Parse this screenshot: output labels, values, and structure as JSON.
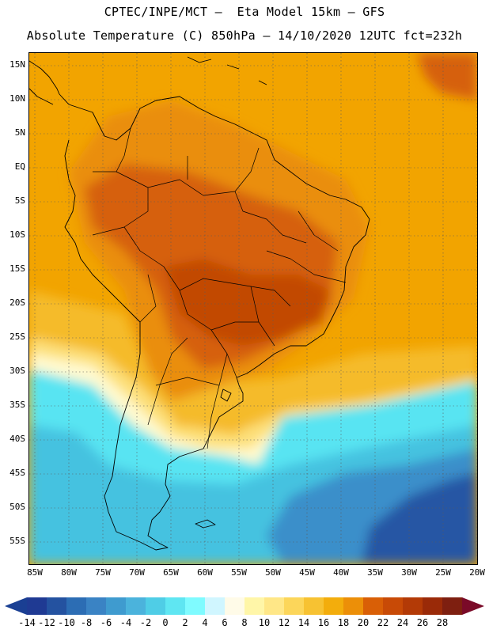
{
  "title_line1": "CPTEC/INPE/MCT –  Eta Model 15km – GFS",
  "title_line2": "Absolute Temperature (C) 850hPa – 14/10/2020 12UTC fct=232h",
  "lat_labels": [
    "15N",
    "10N",
    "5N",
    "EQ",
    "5S",
    "10S",
    "15S",
    "20S",
    "25S",
    "30S",
    "35S",
    "40S",
    "45S",
    "50S",
    "55S"
  ],
  "lon_labels": [
    "85W",
    "80W",
    "75W",
    "70W",
    "65W",
    "60W",
    "55W",
    "50W",
    "45W",
    "40W",
    "35W",
    "30W",
    "25W",
    "20W"
  ],
  "colorbar": {
    "labels": [
      "-14",
      "-12",
      "-10",
      "-8",
      "-6",
      "-4",
      "-2",
      "0",
      "2",
      "4",
      "6",
      "8",
      "10",
      "12",
      "14",
      "16",
      "18",
      "20",
      "22",
      "24",
      "26",
      "28"
    ],
    "colors": [
      "#1f3a93",
      "#2452a0",
      "#2c6db4",
      "#3a83c4",
      "#3f9bcf",
      "#4bb3dc",
      "#4fcde6",
      "#5fe6f2",
      "#7ffbff",
      "#d0f6ff",
      "#fffbe8",
      "#fff6a8",
      "#ffe787",
      "#fcd65a",
      "#f7c232",
      "#f3ad0c",
      "#ec8f08",
      "#d95f06",
      "#c84a06",
      "#b33a06",
      "#9a2a08",
      "#7e1f10"
    ],
    "left_arrow_color": "#1a3f93",
    "right_arrow_color": "#7a0a28"
  },
  "field_colors": {
    "ocean_warm": "#f2a400",
    "tropical_land": "#ea8e08",
    "hot_core": "#d6600a",
    "hottest": "#c24a06",
    "warm_band": "#f5bb2a",
    "mild": "#fde07a",
    "cool": "#fffad0",
    "cold_cyan": "#58e4f2",
    "colder": "#44c2e0",
    "cold_blue": "#3a8fca",
    "deep_blue": "#2556a4"
  }
}
